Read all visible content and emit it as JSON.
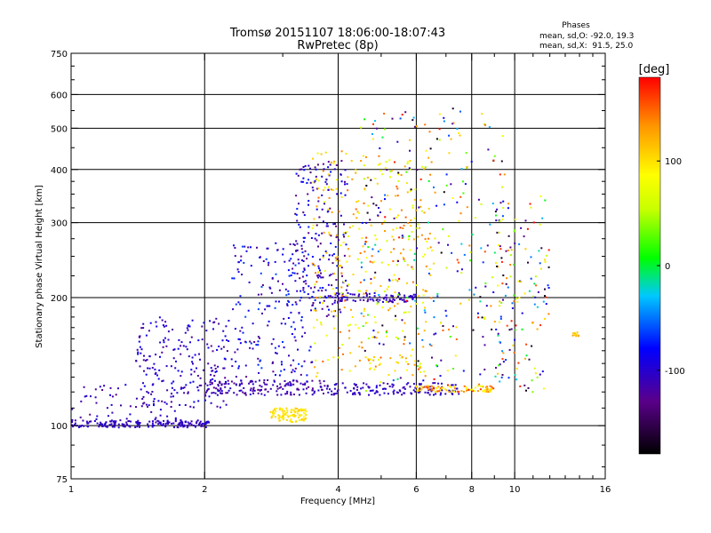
{
  "chart_data": {
    "type": "scatter",
    "title": "Tromsø 20151107 18:06:00-18:07:43",
    "subtitle": "RwPretec (8p)",
    "xlabel": "Frequency [MHz]",
    "ylabel": "Stationary phase Virtual Height [km]",
    "x_scale": "log",
    "y_scale": "log",
    "xlim": [
      1,
      16
    ],
    "ylim": [
      75,
      750
    ],
    "x_ticks": [
      {
        "v": 1,
        "label": "1"
      },
      {
        "v": 2,
        "label": "2"
      },
      {
        "v": 4,
        "label": "4"
      },
      {
        "v": 6,
        "label": "6"
      },
      {
        "v": 8,
        "label": "8"
      },
      {
        "v": 10,
        "label": "10"
      },
      {
        "v": 16,
        "label": "16"
      }
    ],
    "y_ticks": [
      {
        "v": 75,
        "label": "75"
      },
      {
        "v": 100,
        "label": "100"
      },
      {
        "v": 200,
        "label": "200"
      },
      {
        "v": 300,
        "label": "300"
      },
      {
        "v": 400,
        "label": "400"
      },
      {
        "v": 500,
        "label": "500"
      },
      {
        "v": 600,
        "label": "600"
      },
      {
        "v": 750,
        "label": "750"
      }
    ],
    "grid_x": [
      2,
      4,
      6,
      8,
      10
    ],
    "grid_y": [
      100,
      200,
      300,
      400,
      500,
      600
    ],
    "stats": {
      "title": "Phases",
      "line1": "mean, sd,O: -92.0, 19.3",
      "line2": "mean, sd,X:  91.5, 25.0"
    },
    "colorbar": {
      "label": "[deg]",
      "range": [
        -180,
        180
      ],
      "ticks": [
        {
          "v": 100,
          "label": "100"
        },
        {
          "v": 0,
          "label": "0"
        },
        {
          "v": -100,
          "label": "-100"
        }
      ]
    },
    "clusters": [
      {
        "x": [
          1.0,
          2.05
        ],
        "y": [
          99,
          103
        ],
        "phase": [
          -115,
          -95
        ],
        "n": 180
      },
      {
        "x": [
          1.0,
          1.8
        ],
        "y": [
          103,
          125
        ],
        "phase": [
          -130,
          -90
        ],
        "n": 60
      },
      {
        "x": [
          1.4,
          2.3
        ],
        "y": [
          110,
          180
        ],
        "phase": [
          -125,
          -80
        ],
        "n": 200
      },
      {
        "x": [
          2.0,
          3.8
        ],
        "y": [
          118,
          128
        ],
        "phase": [
          -130,
          -95
        ],
        "n": 160
      },
      {
        "x": [
          2.3,
          3.5
        ],
        "y": [
          130,
          270
        ],
        "phase": [
          -130,
          -60
        ],
        "n": 200
      },
      {
        "x": [
          2.8,
          3.4
        ],
        "y": [
          102,
          110
        ],
        "phase": [
          90,
          110
        ],
        "n": 100
      },
      {
        "x": [
          3.2,
          4.2
        ],
        "y": [
          180,
          420
        ],
        "phase": [
          -140,
          -70
        ],
        "n": 200
      },
      {
        "x": [
          3.8,
          6.0
        ],
        "y": [
          195,
          205
        ],
        "phase": [
          -120,
          -95
        ],
        "n": 90
      },
      {
        "x": [
          3.8,
          7.5
        ],
        "y": [
          118,
          126
        ],
        "phase": [
          -115,
          -95
        ],
        "n": 130
      },
      {
        "x": [
          3.5,
          6.5
        ],
        "y": [
          130,
          450
        ],
        "phase": [
          60,
          150
        ],
        "n": 320
      },
      {
        "x": [
          4.5,
          9.5
        ],
        "y": [
          120,
          560
        ],
        "phase": [
          -180,
          180
        ],
        "n": 320
      },
      {
        "x": [
          6.0,
          9.0
        ],
        "y": [
          120,
          124
        ],
        "phase": [
          70,
          170
        ],
        "n": 90
      },
      {
        "x": [
          9.0,
          12.0
        ],
        "y": [
          120,
          350
        ],
        "phase": [
          -180,
          180
        ],
        "n": 140
      },
      {
        "x": [
          13.5,
          14.2
        ],
        "y": [
          162,
          166
        ],
        "phase": [
          100,
          130
        ],
        "n": 10
      }
    ]
  }
}
